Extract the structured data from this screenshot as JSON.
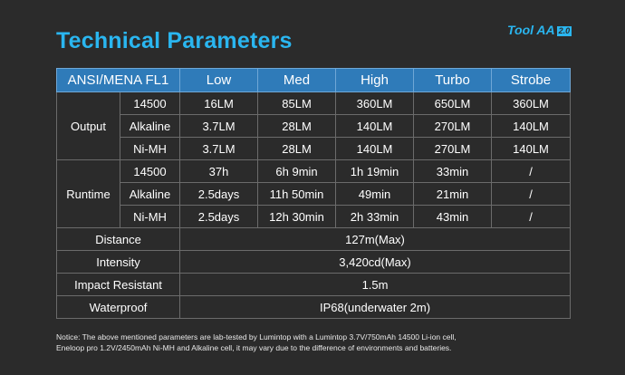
{
  "page": {
    "title": "Technical Parameters",
    "brand": "Tool AA",
    "brand_version": "2.0"
  },
  "table": {
    "headers": [
      "ANSI/MENA FL1",
      "Low",
      "Med",
      "High",
      "Turbo",
      "Strobe"
    ],
    "output": {
      "label": "Output",
      "rows": [
        {
          "battery": "14500",
          "values": [
            "16LM",
            "85LM",
            "360LM",
            "650LM",
            "360LM"
          ]
        },
        {
          "battery": "Alkaline",
          "values": [
            "3.7LM",
            "28LM",
            "140LM",
            "270LM",
            "140LM"
          ]
        },
        {
          "battery": "Ni-MH",
          "values": [
            "3.7LM",
            "28LM",
            "140LM",
            "270LM",
            "140LM"
          ]
        }
      ]
    },
    "runtime": {
      "label": "Runtime",
      "rows": [
        {
          "battery": "14500",
          "values": [
            "37h",
            "6h 9min",
            "1h 19min",
            "33min",
            "/"
          ]
        },
        {
          "battery": "Alkaline",
          "values": [
            "2.5days",
            "11h 50min",
            "49min",
            "21min",
            "/"
          ]
        },
        {
          "battery": "Ni-MH",
          "values": [
            "2.5days",
            "12h 30min",
            "2h 33min",
            "43min",
            "/"
          ]
        }
      ]
    },
    "summary": [
      {
        "label": "Distance",
        "value": "127m(Max)"
      },
      {
        "label": "Intensity",
        "value": "3,420cd(Max)"
      },
      {
        "label": "Impact Resistant",
        "value": "1.5m"
      },
      {
        "label": "Waterproof",
        "value": "IP68(underwater 2m)"
      }
    ]
  },
  "notice": {
    "line1": "Notice: The above mentioned parameters are lab-tested by Lumintop with a Lumintop 3.7V/750mAh 14500 Li-ion cell,",
    "line2": "Eneloop pro 1.2V/2450mAh Ni-MH and Alkaline cell, it may vary due to the difference of environments and batteries."
  },
  "colors": {
    "background": "#2b2b2b",
    "accent": "#2ab6f0",
    "header_bg": "#2f7bb9"
  }
}
